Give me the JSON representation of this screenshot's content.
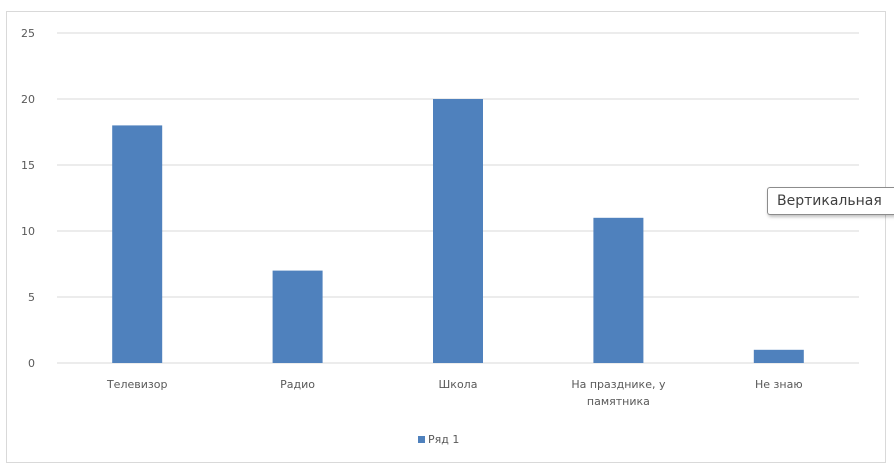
{
  "chart_data": {
    "type": "bar",
    "categories": [
      "Телевизор",
      "Радио",
      "Школа",
      "На празднике, у памятника",
      "Не знаю"
    ],
    "category_lines": [
      [
        "Телевизор"
      ],
      [
        "Радио"
      ],
      [
        "Школа"
      ],
      [
        "На празднике, у",
        "памятника"
      ],
      [
        "Не знаю"
      ]
    ],
    "series": [
      {
        "name": "Ряд 1",
        "values": [
          18,
          7,
          20,
          11,
          1
        ]
      }
    ],
    "ylim": [
      0,
      25
    ],
    "yticks": [
      0,
      5,
      10,
      15,
      20,
      25
    ],
    "grid": true,
    "legend": "bottom",
    "bar_color": "#4f81bd",
    "grid_color": "#d9d9d9"
  },
  "tooltip": {
    "text": "Вертикальная"
  }
}
